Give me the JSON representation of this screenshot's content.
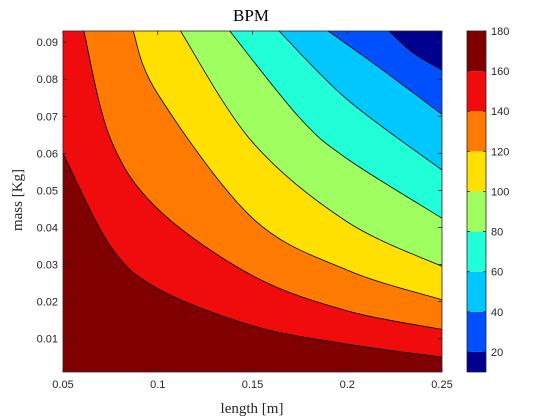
{
  "chart_data": {
    "type": "contour",
    "title": "BPM",
    "xlabel": "length [m]",
    "ylabel": "mass [Kg]",
    "xlim": [
      0.05,
      0.25
    ],
    "ylim": [
      0.001,
      0.093
    ],
    "x_ticks": [
      "0.05",
      "0.1",
      "0.15",
      "0.2",
      "0.25"
    ],
    "y_ticks": [
      "0.01",
      "0.02",
      "0.03",
      "0.04",
      "0.05",
      "0.06",
      "0.07",
      "0.08",
      "0.09"
    ],
    "levels": [
      20,
      40,
      60,
      80,
      100,
      120,
      140,
      160
    ],
    "colorbar": {
      "range": [
        10,
        180
      ],
      "ticks": [
        "20",
        "40",
        "60",
        "80",
        "100",
        "120",
        "140",
        "160",
        "180"
      ],
      "colors": [
        "#00008f",
        "#0050ff",
        "#00c8ff",
        "#20ffd8",
        "#a0ff60",
        "#ffe000",
        "#ff7a00",
        "#f00c0c",
        "#800000"
      ]
    },
    "contour_lines": [
      {
        "level": 160,
        "points": [
          [
            0.05,
            0.06
          ],
          [
            0.075,
            0.035
          ],
          [
            0.1,
            0.0235
          ],
          [
            0.15,
            0.0135
          ],
          [
            0.2,
            0.0085
          ],
          [
            0.25,
            0.005
          ]
        ]
      },
      {
        "level": 140,
        "points": [
          [
            0.061,
            0.093
          ],
          [
            0.075,
            0.064
          ],
          [
            0.1,
            0.045
          ],
          [
            0.15,
            0.027
          ],
          [
            0.2,
            0.0175
          ],
          [
            0.25,
            0.0125
          ]
        ]
      },
      {
        "level": 120,
        "points": [
          [
            0.087,
            0.093
          ],
          [
            0.1,
            0.076
          ],
          [
            0.15,
            0.0425
          ],
          [
            0.2,
            0.0285
          ],
          [
            0.25,
            0.0205
          ]
        ]
      },
      {
        "level": 100,
        "points": [
          [
            0.112,
            0.093
          ],
          [
            0.15,
            0.063
          ],
          [
            0.2,
            0.0415
          ],
          [
            0.25,
            0.0295
          ]
        ]
      },
      {
        "level": 80,
        "points": [
          [
            0.138,
            0.093
          ],
          [
            0.175,
            0.0695
          ],
          [
            0.2,
            0.0585
          ],
          [
            0.25,
            0.0425
          ]
        ]
      },
      {
        "level": 60,
        "points": [
          [
            0.164,
            0.093
          ],
          [
            0.2,
            0.0745
          ],
          [
            0.25,
            0.0555
          ]
        ]
      },
      {
        "level": 40,
        "points": [
          [
            0.19,
            0.093
          ],
          [
            0.22,
            0.082
          ],
          [
            0.25,
            0.0705
          ]
        ]
      },
      {
        "level": 20,
        "points": [
          [
            0.222,
            0.093
          ],
          [
            0.235,
            0.087
          ],
          [
            0.25,
            0.0825
          ]
        ]
      }
    ]
  }
}
